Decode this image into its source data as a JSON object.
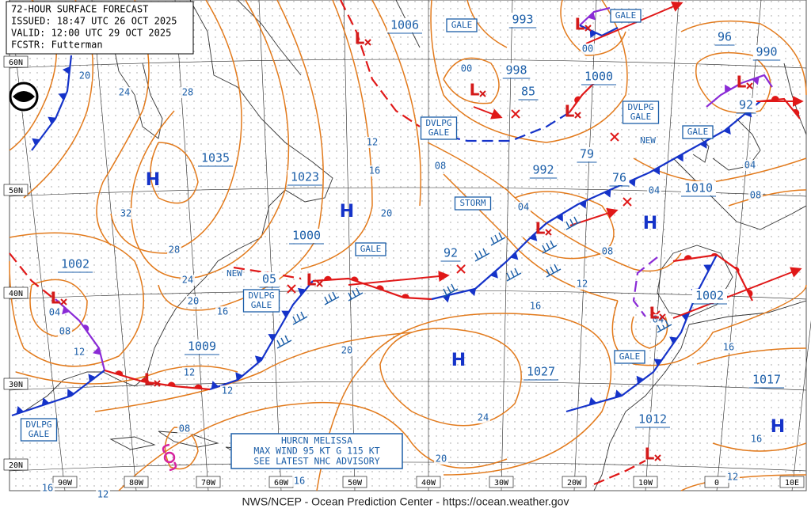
{
  "header": {
    "lines": [
      "72-HOUR SURFACE FORECAST",
      "ISSUED: 18:47 UTC 26 OCT 2025",
      "VALID: 12:00 UTC 29 OCT 2025",
      "FCSTR: Futterman"
    ]
  },
  "footer": "NWS/NCEP - Ocean Prediction Center - https://ocean.weather.gov",
  "advisory": {
    "lines": [
      "HURCN MELISSA",
      "MAX WIND 95 KT G 115 KT",
      "SEE LATEST NHC ADVISORY"
    ]
  },
  "lat_labels": [
    "60N",
    "50N",
    "40N",
    "30N",
    "20N"
  ],
  "lon_labels": [
    "90W",
    "80W",
    "70W",
    "60W",
    "50W",
    "40W",
    "30W",
    "20W",
    "10W",
    "0",
    "10E"
  ],
  "boxed_labels": [
    [
      "GALE"
    ],
    [
      "GALE"
    ],
    [
      "DVLPG",
      "GALE"
    ],
    [
      "DVLPG",
      "GALE"
    ],
    [
      "GALE"
    ],
    [
      "STORM"
    ],
    [
      "GALE"
    ],
    [
      "DVLPG",
      "GALE"
    ],
    [
      "GALE"
    ],
    [
      "DVLPG",
      "GALE"
    ]
  ],
  "new_labels": [
    "NEW",
    "NEW"
  ],
  "pressure_labels": [
    "1006",
    "993",
    "998",
    "85",
    "1000",
    "990",
    "96",
    "92",
    "1035",
    "1023",
    "1000",
    "1002",
    "05",
    "92",
    "992",
    "79",
    "76",
    "1010",
    "1009",
    "1027",
    "1002",
    "1017",
    "1012"
  ],
  "isobar_labels": [
    "16",
    "20",
    "24",
    "28",
    "32",
    "28",
    "24",
    "20",
    "16",
    "12",
    "12",
    "04",
    "08",
    "12",
    "12",
    "16",
    "20",
    "08",
    "04",
    "08",
    "12",
    "16",
    "20",
    "24",
    "20",
    "16",
    "16",
    "12",
    "08",
    "00",
    "00",
    "04",
    "04",
    "08",
    "16",
    "16",
    "12",
    "04"
  ],
  "highs": [
    "H",
    "H",
    "H",
    "H",
    "H"
  ],
  "lows": [
    "L",
    "L",
    "L",
    "L",
    "L",
    "L",
    "L",
    "L",
    "L",
    "L",
    "L"
  ]
}
